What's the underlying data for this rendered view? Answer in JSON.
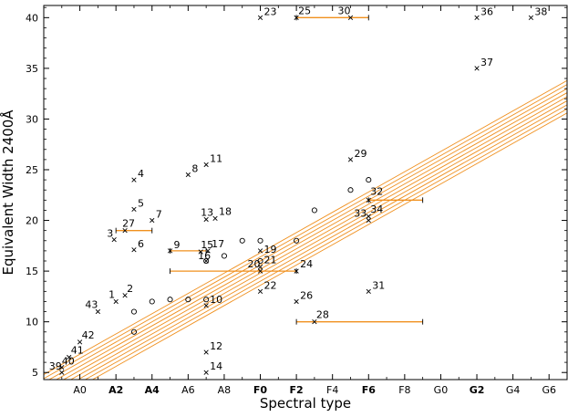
{
  "chart_data": {
    "type": "scatter",
    "xlabel": "Spectral type",
    "ylabel": "Equivalent Width 2400Å",
    "xlim": [
      -2,
      27
    ],
    "ylim": [
      4.3,
      41.2
    ],
    "grid": false,
    "x_ticks": [
      {
        "x": 0,
        "label": "A0",
        "bold": false
      },
      {
        "x": 2,
        "label": "A2",
        "bold": true
      },
      {
        "x": 4,
        "label": "A4",
        "bold": true
      },
      {
        "x": 6,
        "label": "A6",
        "bold": false
      },
      {
        "x": 8,
        "label": "A8",
        "bold": false
      },
      {
        "x": 10,
        "label": "F0",
        "bold": true
      },
      {
        "x": 12,
        "label": "F2",
        "bold": true
      },
      {
        "x": 14,
        "label": "F4",
        "bold": false
      },
      {
        "x": 16,
        "label": "F6",
        "bold": true
      },
      {
        "x": 18,
        "label": "F8",
        "bold": false
      },
      {
        "x": 20,
        "label": "G0",
        "bold": false
      },
      {
        "x": 22,
        "label": "G2",
        "bold": true
      },
      {
        "x": 24,
        "label": "G4",
        "bold": false
      },
      {
        "x": 26,
        "label": "G6",
        "bold": false
      }
    ],
    "y_ticks": [
      5,
      10,
      15,
      20,
      25,
      30,
      35,
      40
    ],
    "labeled_points": [
      {
        "label": "1",
        "x": 2.0,
        "y": 12.0
      },
      {
        "label": "2",
        "x": 2.5,
        "y": 12.6
      },
      {
        "label": "3",
        "x": 1.9,
        "y": 18.1
      },
      {
        "label": "4",
        "x": 3.0,
        "y": 24.0
      },
      {
        "label": "5",
        "x": 3.0,
        "y": 21.1
      },
      {
        "label": "6",
        "x": 3.0,
        "y": 17.1
      },
      {
        "label": "7",
        "x": 4.0,
        "y": 20.0
      },
      {
        "label": "8",
        "x": 6.0,
        "y": 24.5
      },
      {
        "label": "9",
        "x": 5.0,
        "y": 17.0
      },
      {
        "label": "10",
        "x": 7.0,
        "y": 11.6
      },
      {
        "label": "11",
        "x": 7.0,
        "y": 25.5
      },
      {
        "label": "12",
        "x": 7.0,
        "y": 7.0
      },
      {
        "label": "13",
        "x": 7.0,
        "y": 20.1
      },
      {
        "label": "14",
        "x": 7.0,
        "y": 5.0
      },
      {
        "label": "15",
        "x": 6.7,
        "y": 16.9
      },
      {
        "label": "16",
        "x": 7.0,
        "y": 16.0
      },
      {
        "label": "17",
        "x": 7.1,
        "y": 17.0
      },
      {
        "label": "18",
        "x": 7.5,
        "y": 20.2
      },
      {
        "label": "19",
        "x": 10.0,
        "y": 17.0
      },
      {
        "label": "20",
        "x": 10.0,
        "y": 15.0
      },
      {
        "label": "21",
        "x": 10.0,
        "y": 15.4
      },
      {
        "label": "22",
        "x": 10.0,
        "y": 13.0
      },
      {
        "label": "23",
        "x": 10.0,
        "y": 40.0
      },
      {
        "label": "24",
        "x": 12.0,
        "y": 15.0
      },
      {
        "label": "25",
        "x": 12.0,
        "y": 40.0
      },
      {
        "label": "26",
        "x": 12.0,
        "y": 12.0
      },
      {
        "label": "27",
        "x": 2.5,
        "y": 19.0
      },
      {
        "label": "28",
        "x": 13.0,
        "y": 10.0
      },
      {
        "label": "29",
        "x": 15.0,
        "y": 26.0
      },
      {
        "label": "30",
        "x": 15.0,
        "y": 40.0
      },
      {
        "label": "31",
        "x": 16.0,
        "y": 13.0
      },
      {
        "label": "32",
        "x": 16.0,
        "y": 22.0
      },
      {
        "label": "33",
        "x": 16.0,
        "y": 20.0
      },
      {
        "label": "34",
        "x": 16.0,
        "y": 20.4
      },
      {
        "label": "36",
        "x": 22.0,
        "y": 40.0
      },
      {
        "label": "37",
        "x": 22.0,
        "y": 35.0
      },
      {
        "label": "38",
        "x": 25.0,
        "y": 40.0
      },
      {
        "label": "39",
        "x": -1.0,
        "y": 5.0
      },
      {
        "label": "40",
        "x": -1.0,
        "y": 5.5
      },
      {
        "label": "41",
        "x": -0.6,
        "y": 6.5
      },
      {
        "label": "42",
        "x": 0.0,
        "y": 8.0
      },
      {
        "label": "43",
        "x": 1.0,
        "y": 11.0
      }
    ],
    "circle_points": [
      {
        "x": 3.0,
        "y": 9.0
      },
      {
        "x": 3.0,
        "y": 11.0
      },
      {
        "x": 4.0,
        "y": 12.0
      },
      {
        "x": 5.0,
        "y": 12.2
      },
      {
        "x": 6.0,
        "y": 12.2
      },
      {
        "x": 7.0,
        "y": 12.2
      },
      {
        "x": 7.0,
        "y": 16.0
      },
      {
        "x": 8.0,
        "y": 16.5
      },
      {
        "x": 9.0,
        "y": 18.0
      },
      {
        "x": 10.0,
        "y": 18.0
      },
      {
        "x": 10.0,
        "y": 16.0
      },
      {
        "x": 12.0,
        "y": 18.0
      },
      {
        "x": 13.0,
        "y": 21.0
      },
      {
        "x": 15.0,
        "y": 23.0
      },
      {
        "x": 16.0,
        "y": 24.0
      }
    ],
    "range_bars": [
      {
        "x1": 2.0,
        "x2": 4.0,
        "y": 19.0
      },
      {
        "x1": 5.0,
        "x2": 7.0,
        "y": 17.0
      },
      {
        "x1": 5.0,
        "x2": 12.0,
        "y": 15.0
      },
      {
        "x1": 12.0,
        "x2": 16.0,
        "y": 40.0
      },
      {
        "x1": 12.0,
        "x2": 19.0,
        "y": 10.0
      },
      {
        "x1": 16.0,
        "x2": 19.0,
        "y": 22.0
      }
    ],
    "fit_band": {
      "slope": 1.0,
      "intercept_center": 5.2,
      "offsets": [
        -1.6,
        -1.2,
        -0.8,
        -0.4,
        0.0,
        0.4,
        0.8,
        1.2,
        1.6
      ],
      "color": "#f0901e"
    },
    "colors": {
      "axis": "#000000",
      "points": "#000000",
      "range_bar": "#f0901e",
      "fit_line": "#f0901e"
    }
  }
}
